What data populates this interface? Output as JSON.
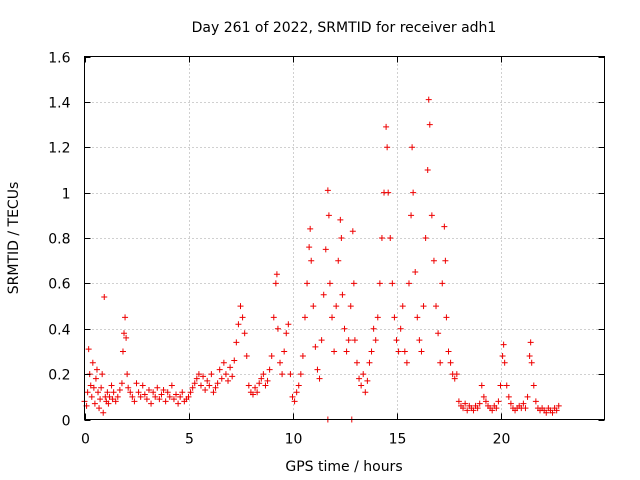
{
  "chart_data": {
    "type": "scatter",
    "title": "Day 261 of 2022, SRMTID for receiver adh1",
    "xlabel": "GPS time / hours",
    "ylabel": "SRMTID / TECUs",
    "xlim": [
      0,
      25
    ],
    "ylim": [
      0,
      1.6
    ],
    "xticks": [
      0,
      5,
      10,
      15,
      20
    ],
    "xtick_labels": [
      "0",
      "5",
      "10",
      "15",
      "20"
    ],
    "yticks": [
      0,
      0.2,
      0.4,
      0.6,
      0.8,
      1.0,
      1.2,
      1.4,
      1.6
    ],
    "ytick_labels": [
      "0",
      "0.2",
      "0.4",
      "0.6",
      "0.8",
      "1",
      "1.2",
      "1.4",
      "1.6"
    ],
    "grid": true,
    "marker": "+",
    "color": "#ee0000",
    "series": [
      {
        "name": "SRMTID",
        "points": [
          [
            0.0,
            0.08
          ],
          [
            0.1,
            0.06
          ],
          [
            0.15,
            0.12
          ],
          [
            0.2,
            0.31
          ],
          [
            0.25,
            0.2
          ],
          [
            0.3,
            0.15
          ],
          [
            0.35,
            0.1
          ],
          [
            0.4,
            0.25
          ],
          [
            0.45,
            0.14
          ],
          [
            0.5,
            0.07
          ],
          [
            0.55,
            0.18
          ],
          [
            0.6,
            0.22
          ],
          [
            0.65,
            0.12
          ],
          [
            0.7,
            0.05
          ],
          [
            0.75,
            0.09
          ],
          [
            0.8,
            0.14
          ],
          [
            0.85,
            0.2
          ],
          [
            0.9,
            0.03
          ],
          [
            0.95,
            0.54
          ],
          [
            1.0,
            0.1
          ],
          [
            1.05,
            0.08
          ],
          [
            1.1,
            0.12
          ],
          [
            1.15,
            0.07
          ],
          [
            1.2,
            0.1
          ],
          [
            1.3,
            0.15
          ],
          [
            1.35,
            0.09
          ],
          [
            1.4,
            0.12
          ],
          [
            1.5,
            0.08
          ],
          [
            1.6,
            0.1
          ],
          [
            1.7,
            0.13
          ],
          [
            1.8,
            0.16
          ],
          [
            1.85,
            0.3
          ],
          [
            1.9,
            0.38
          ],
          [
            1.95,
            0.45
          ],
          [
            2.0,
            0.36
          ],
          [
            2.05,
            0.2
          ],
          [
            2.1,
            0.14
          ],
          [
            2.2,
            0.12
          ],
          [
            2.3,
            0.1
          ],
          [
            2.4,
            0.08
          ],
          [
            2.5,
            0.16
          ],
          [
            2.6,
            0.12
          ],
          [
            2.7,
            0.1
          ],
          [
            2.8,
            0.15
          ],
          [
            2.9,
            0.11
          ],
          [
            3.0,
            0.09
          ],
          [
            3.1,
            0.13
          ],
          [
            3.2,
            0.07
          ],
          [
            3.3,
            0.12
          ],
          [
            3.4,
            0.1
          ],
          [
            3.5,
            0.14
          ],
          [
            3.6,
            0.09
          ],
          [
            3.7,
            0.11
          ],
          [
            3.8,
            0.13
          ],
          [
            3.9,
            0.08
          ],
          [
            4.0,
            0.12
          ],
          [
            4.1,
            0.1
          ],
          [
            4.2,
            0.15
          ],
          [
            4.3,
            0.09
          ],
          [
            4.4,
            0.11
          ],
          [
            4.5,
            0.07
          ],
          [
            4.6,
            0.1
          ],
          [
            4.7,
            0.12
          ],
          [
            4.8,
            0.08
          ],
          [
            4.9,
            0.09
          ],
          [
            5.0,
            0.1
          ],
          [
            5.1,
            0.12
          ],
          [
            5.2,
            0.14
          ],
          [
            5.3,
            0.16
          ],
          [
            5.4,
            0.18
          ],
          [
            5.5,
            0.2
          ],
          [
            5.6,
            0.15
          ],
          [
            5.7,
            0.19
          ],
          [
            5.8,
            0.13
          ],
          [
            5.9,
            0.17
          ],
          [
            6.0,
            0.15
          ],
          [
            6.1,
            0.2
          ],
          [
            6.2,
            0.12
          ],
          [
            6.3,
            0.14
          ],
          [
            6.4,
            0.16
          ],
          [
            6.5,
            0.22
          ],
          [
            6.6,
            0.18
          ],
          [
            6.7,
            0.25
          ],
          [
            6.8,
            0.2
          ],
          [
            6.9,
            0.17
          ],
          [
            7.0,
            0.23
          ],
          [
            7.1,
            0.19
          ],
          [
            7.2,
            0.26
          ],
          [
            7.3,
            0.34
          ],
          [
            7.4,
            0.42
          ],
          [
            7.5,
            0.5
          ],
          [
            7.6,
            0.45
          ],
          [
            7.7,
            0.38
          ],
          [
            7.8,
            0.28
          ],
          [
            7.9,
            0.15
          ],
          [
            8.0,
            0.12
          ],
          [
            8.1,
            0.11
          ],
          [
            8.2,
            0.14
          ],
          [
            8.3,
            0.12
          ],
          [
            8.4,
            0.16
          ],
          [
            8.5,
            0.18
          ],
          [
            8.6,
            0.2
          ],
          [
            8.7,
            0.15
          ],
          [
            8.8,
            0.17
          ],
          [
            8.9,
            0.22
          ],
          [
            9.0,
            0.28
          ],
          [
            9.1,
            0.45
          ],
          [
            9.2,
            0.6
          ],
          [
            9.25,
            0.64
          ],
          [
            9.3,
            0.4
          ],
          [
            9.4,
            0.25
          ],
          [
            9.5,
            0.2
          ],
          [
            9.6,
            0.3
          ],
          [
            9.7,
            0.38
          ],
          [
            9.8,
            0.42
          ],
          [
            9.9,
            0.2
          ],
          [
            10.0,
            0.1
          ],
          [
            10.1,
            0.08
          ],
          [
            10.2,
            0.12
          ],
          [
            10.3,
            0.15
          ],
          [
            10.4,
            0.2
          ],
          [
            10.5,
            0.28
          ],
          [
            10.6,
            0.45
          ],
          [
            10.7,
            0.6
          ],
          [
            10.8,
            0.76
          ],
          [
            10.85,
            0.84
          ],
          [
            10.9,
            0.7
          ],
          [
            11.0,
            0.5
          ],
          [
            11.1,
            0.32
          ],
          [
            11.2,
            0.22
          ],
          [
            11.3,
            0.18
          ],
          [
            11.4,
            0.35
          ],
          [
            11.5,
            0.55
          ],
          [
            11.6,
            0.75
          ],
          [
            11.7,
            1.01
          ],
          [
            11.75,
            0.9
          ],
          [
            11.8,
            0.6
          ],
          [
            11.9,
            0.45
          ],
          [
            12.0,
            0.3
          ],
          [
            12.1,
            0.5
          ],
          [
            12.2,
            0.7
          ],
          [
            12.3,
            0.88
          ],
          [
            12.35,
            0.8
          ],
          [
            12.4,
            0.55
          ],
          [
            12.5,
            0.4
          ],
          [
            12.6,
            0.3
          ],
          [
            12.7,
            0.35
          ],
          [
            12.8,
            0.5
          ],
          [
            12.9,
            0.83
          ],
          [
            12.95,
            0.6
          ],
          [
            13.0,
            0.35
          ],
          [
            13.1,
            0.25
          ],
          [
            13.2,
            0.18
          ],
          [
            13.3,
            0.15
          ],
          [
            13.4,
            0.2
          ],
          [
            13.5,
            0.12
          ],
          [
            13.6,
            0.17
          ],
          [
            13.7,
            0.25
          ],
          [
            13.8,
            0.3
          ],
          [
            13.9,
            0.4
          ],
          [
            14.0,
            0.35
          ],
          [
            14.1,
            0.45
          ],
          [
            14.2,
            0.6
          ],
          [
            14.3,
            0.8
          ],
          [
            14.4,
            1.0
          ],
          [
            14.5,
            1.29
          ],
          [
            14.55,
            1.2
          ],
          [
            14.6,
            1.0
          ],
          [
            14.7,
            0.8
          ],
          [
            14.8,
            0.6
          ],
          [
            14.9,
            0.45
          ],
          [
            15.0,
            0.35
          ],
          [
            15.1,
            0.3
          ],
          [
            15.2,
            0.4
          ],
          [
            15.3,
            0.5
          ],
          [
            15.4,
            0.3
          ],
          [
            15.5,
            0.25
          ],
          [
            15.6,
            0.6
          ],
          [
            15.7,
            0.9
          ],
          [
            15.75,
            1.2
          ],
          [
            15.8,
            1.0
          ],
          [
            15.9,
            0.65
          ],
          [
            16.0,
            0.45
          ],
          [
            16.1,
            0.35
          ],
          [
            16.2,
            0.3
          ],
          [
            16.3,
            0.5
          ],
          [
            16.4,
            0.8
          ],
          [
            16.5,
            1.1
          ],
          [
            16.55,
            1.41
          ],
          [
            16.6,
            1.3
          ],
          [
            16.7,
            0.9
          ],
          [
            16.8,
            0.7
          ],
          [
            16.9,
            0.5
          ],
          [
            17.0,
            0.38
          ],
          [
            17.1,
            0.25
          ],
          [
            17.2,
            0.6
          ],
          [
            17.3,
            0.85
          ],
          [
            17.35,
            0.7
          ],
          [
            17.4,
            0.45
          ],
          [
            17.5,
            0.3
          ],
          [
            17.6,
            0.25
          ],
          [
            17.7,
            0.2
          ],
          [
            17.8,
            0.18
          ],
          [
            17.9,
            0.2
          ],
          [
            18.0,
            0.08
          ],
          [
            18.1,
            0.06
          ],
          [
            18.2,
            0.05
          ],
          [
            18.3,
            0.07
          ],
          [
            18.4,
            0.04
          ],
          [
            18.5,
            0.06
          ],
          [
            18.6,
            0.05
          ],
          [
            18.7,
            0.04
          ],
          [
            18.8,
            0.06
          ],
          [
            18.9,
            0.05
          ],
          [
            19.0,
            0.07
          ],
          [
            19.1,
            0.15
          ],
          [
            19.2,
            0.1
          ],
          [
            19.3,
            0.08
          ],
          [
            19.4,
            0.06
          ],
          [
            19.5,
            0.05
          ],
          [
            19.6,
            0.04
          ],
          [
            19.7,
            0.06
          ],
          [
            19.8,
            0.05
          ],
          [
            19.9,
            0.08
          ],
          [
            20.0,
            0.15
          ],
          [
            20.1,
            0.28
          ],
          [
            20.15,
            0.33
          ],
          [
            20.2,
            0.25
          ],
          [
            20.3,
            0.15
          ],
          [
            20.4,
            0.1
          ],
          [
            20.5,
            0.07
          ],
          [
            20.6,
            0.05
          ],
          [
            20.7,
            0.04
          ],
          [
            20.8,
            0.05
          ],
          [
            20.9,
            0.06
          ],
          [
            21.0,
            0.05
          ],
          [
            21.1,
            0.07
          ],
          [
            21.2,
            0.05
          ],
          [
            21.3,
            0.1
          ],
          [
            21.4,
            0.28
          ],
          [
            21.45,
            0.34
          ],
          [
            21.5,
            0.25
          ],
          [
            21.6,
            0.15
          ],
          [
            21.7,
            0.08
          ],
          [
            21.8,
            0.05
          ],
          [
            21.9,
            0.04
          ],
          [
            22.0,
            0.05
          ],
          [
            22.1,
            0.04
          ],
          [
            22.2,
            0.03
          ],
          [
            22.3,
            0.05
          ],
          [
            22.4,
            0.04
          ],
          [
            22.5,
            0.03
          ],
          [
            22.6,
            0.05
          ],
          [
            22.7,
            0.04
          ],
          [
            22.8,
            0.06
          ],
          [
            11.7,
            0.0
          ],
          [
            12.85,
            0.0
          ]
        ]
      }
    ]
  }
}
